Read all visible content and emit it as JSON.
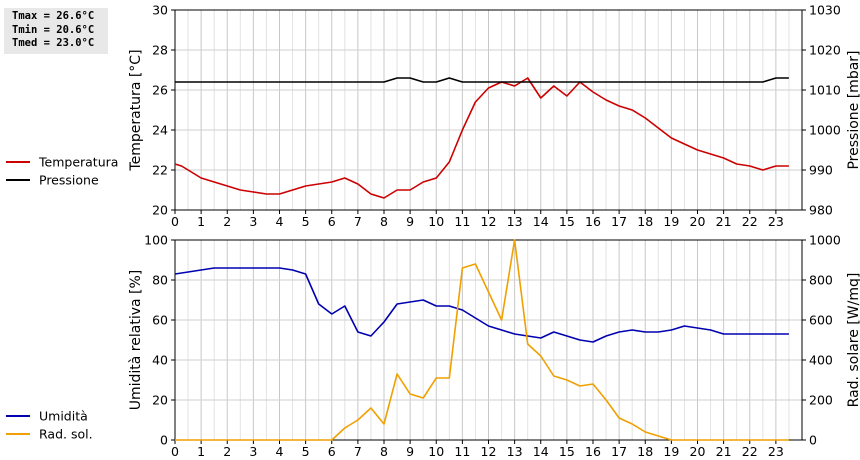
{
  "stats": {
    "tmax": "Tmax = 26.6°C",
    "tmin": "Tmin = 20.6°C",
    "tmed": "Tmed = 23.0°C"
  },
  "chart_data": [
    {
      "type": "line",
      "x_ticks": [
        "0",
        "1",
        "2",
        "3",
        "4",
        "5",
        "6",
        "7",
        "8",
        "9",
        "10",
        "11",
        "12",
        "13",
        "14",
        "15",
        "16",
        "17",
        "18",
        "19",
        "20",
        "21",
        "22",
        "23"
      ],
      "xlim": [
        0,
        24
      ],
      "left_axis": {
        "label": "Temperatura [°C]",
        "ylim": [
          20,
          30
        ],
        "ticks": [
          "20",
          "22",
          "24",
          "26",
          "28",
          "30"
        ]
      },
      "right_axis": {
        "label": "Pressione [mbar]",
        "ylim": [
          980,
          1030
        ],
        "ticks": [
          "980",
          "990",
          "1000",
          "1010",
          "1020",
          "1030"
        ]
      },
      "grid": true,
      "legend_placement": "left",
      "series": [
        {
          "name": "Temperatura",
          "axis": "left",
          "color": "#cc0000",
          "x": [
            0,
            0.25,
            0.5,
            0.75,
            1,
            1.5,
            2,
            2.5,
            3,
            3.5,
            4,
            4.5,
            5,
            5.5,
            6,
            6.5,
            7,
            7.5,
            8,
            8.5,
            9,
            9.5,
            10,
            10.5,
            11,
            11.5,
            12,
            12.5,
            13,
            13.5,
            14,
            14.5,
            15,
            15.5,
            16,
            16.5,
            17,
            17.5,
            18,
            18.5,
            19,
            19.5,
            20,
            20.5,
            21,
            21.5,
            22,
            22.5,
            23,
            23.5
          ],
          "y": [
            22.3,
            22.2,
            22.0,
            21.8,
            21.6,
            21.4,
            21.2,
            21.0,
            20.9,
            20.8,
            20.8,
            21.0,
            21.2,
            21.3,
            21.4,
            21.6,
            21.3,
            20.8,
            20.6,
            21.0,
            21.0,
            21.4,
            21.6,
            22.4,
            24.0,
            25.4,
            26.1,
            26.4,
            26.2,
            26.6,
            25.6,
            26.2,
            25.7,
            26.4,
            25.9,
            25.5,
            25.2,
            25.0,
            24.6,
            24.1,
            23.6,
            23.3,
            23.0,
            22.8,
            22.6,
            22.3,
            22.2,
            22.0,
            22.2,
            22.2
          ]
        },
        {
          "name": "Pressione",
          "axis": "right",
          "color": "#000000",
          "x": [
            0,
            1,
            2,
            3,
            4,
            5,
            6,
            7,
            8,
            8.5,
            9,
            9.5,
            10,
            10.5,
            11,
            11.5,
            12,
            13,
            14,
            15,
            16,
            17,
            18,
            19,
            20,
            21,
            22,
            22.5,
            23,
            23.5
          ],
          "y": [
            1012,
            1012,
            1012,
            1012,
            1012,
            1012,
            1012,
            1012,
            1012,
            1013,
            1013,
            1012,
            1012,
            1013,
            1012,
            1012,
            1012,
            1012,
            1012,
            1012,
            1012,
            1012,
            1012,
            1012,
            1012,
            1012,
            1012,
            1012,
            1013,
            1013
          ]
        }
      ]
    },
    {
      "type": "line",
      "x_ticks": [
        "0",
        "1",
        "2",
        "3",
        "4",
        "5",
        "6",
        "7",
        "8",
        "9",
        "10",
        "11",
        "12",
        "13",
        "14",
        "15",
        "16",
        "17",
        "18",
        "19",
        "20",
        "21",
        "22",
        "23"
      ],
      "xlim": [
        0,
        24
      ],
      "left_axis": {
        "label": "Umidità relativa [%]",
        "ylim": [
          0,
          100
        ],
        "ticks": [
          "0",
          "20",
          "40",
          "60",
          "80",
          "100"
        ]
      },
      "right_axis": {
        "label": "Rad. solare [W/mq]",
        "ylim": [
          0,
          1000
        ],
        "ticks": [
          "0",
          "200",
          "400",
          "600",
          "800",
          "1000"
        ]
      },
      "grid": true,
      "legend_placement": "left",
      "series": [
        {
          "name": "Umidità",
          "axis": "left",
          "color": "#0000b0",
          "x": [
            0,
            0.5,
            1,
            1.5,
            2,
            2.5,
            3,
            3.5,
            4,
            4.5,
            5,
            5.5,
            6,
            6.5,
            7,
            7.5,
            8,
            8.5,
            9,
            9.5,
            10,
            10.5,
            11,
            11.5,
            12,
            12.5,
            13,
            13.5,
            14,
            14.5,
            15,
            15.5,
            16,
            16.5,
            17,
            17.5,
            18,
            18.5,
            19,
            19.5,
            20,
            20.5,
            21,
            21.5,
            22,
            22.5,
            23,
            23.5
          ],
          "y": [
            83,
            84,
            85,
            86,
            86,
            86,
            86,
            86,
            86,
            85,
            83,
            68,
            63,
            67,
            54,
            52,
            59,
            68,
            69,
            70,
            67,
            67,
            65,
            61,
            57,
            55,
            53,
            52,
            51,
            54,
            52,
            50,
            49,
            52,
            54,
            55,
            54,
            54,
            55,
            57,
            56,
            55,
            53,
            53,
            53,
            53,
            53,
            53
          ]
        },
        {
          "name": "Rad. sol.",
          "axis": "right",
          "color": "#f0a000",
          "x": [
            0,
            1,
            2,
            3,
            4,
            5,
            5.5,
            6,
            6.5,
            7,
            7.5,
            8,
            8.5,
            9,
            9.5,
            10,
            10.5,
            11,
            11.5,
            12,
            12.5,
            13,
            13.5,
            14,
            14.5,
            15,
            15.5,
            16,
            16.5,
            17,
            17.5,
            18,
            18.5,
            19,
            20,
            21,
            22,
            23,
            23.5
          ],
          "y": [
            0,
            0,
            0,
            0,
            0,
            0,
            0,
            0,
            60,
            100,
            160,
            80,
            330,
            230,
            210,
            310,
            310,
            860,
            880,
            740,
            600,
            1000,
            480,
            420,
            320,
            300,
            270,
            280,
            200,
            110,
            80,
            40,
            20,
            0,
            0,
            0,
            0,
            0,
            0
          ]
        }
      ]
    }
  ]
}
